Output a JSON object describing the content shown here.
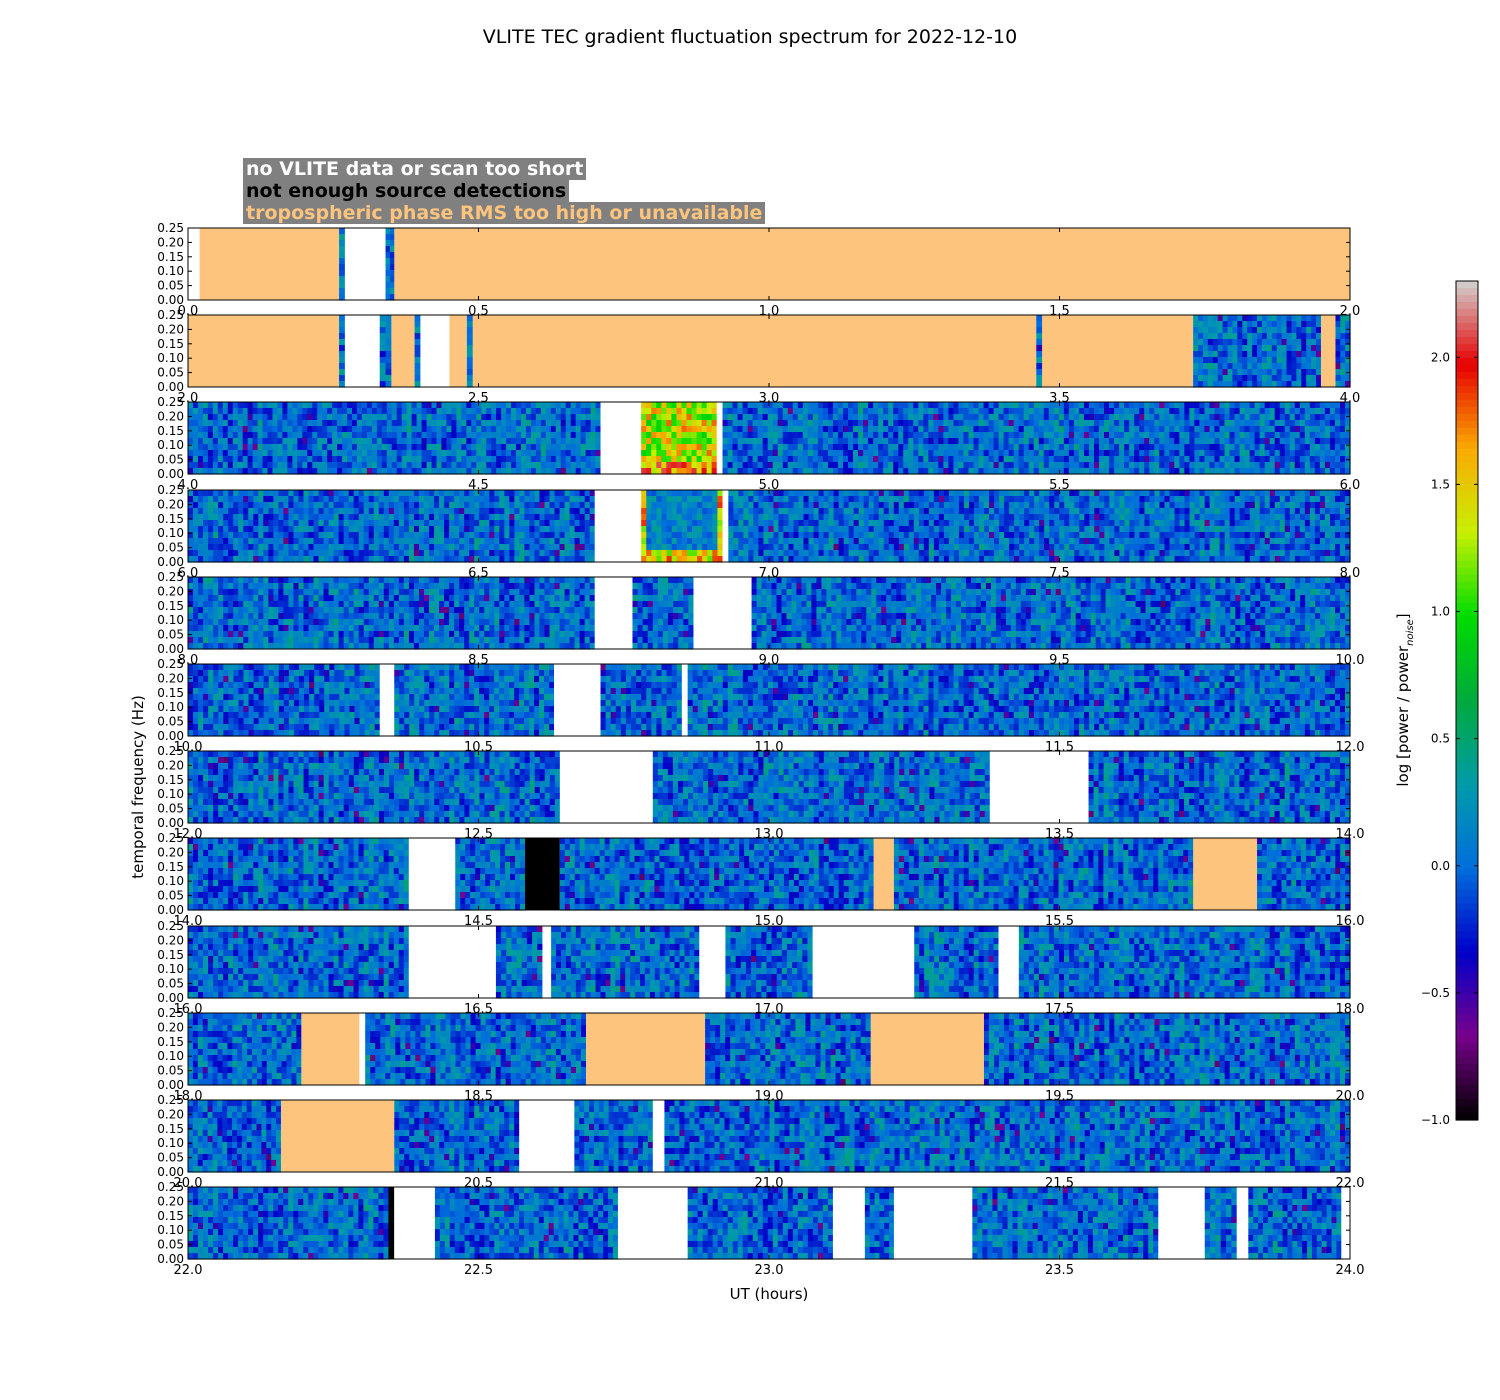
{
  "chart_data": {
    "type": "heatmap",
    "title": "VLITE TEC gradient fluctuation spectrum for 2022-12-10",
    "xlabel": "UT (hours)",
    "ylabel": "temporal frequency (Hz)",
    "ylim": [
      0,
      0.25
    ],
    "yticks": [
      "0.00",
      "0.05",
      "0.10",
      "0.15",
      "0.20",
      "0.25"
    ],
    "colorbar": {
      "label": "log [power / power",
      "label_sub": "noise",
      "label_end": "]",
      "range": [
        -1.0,
        2.3
      ],
      "ticks": [
        "−1.0",
        "−0.5",
        "0.0",
        "0.5",
        "1.0",
        "1.5",
        "2.0"
      ],
      "tick_values": [
        -1.0,
        -0.5,
        0.0,
        0.5,
        1.0,
        1.5,
        2.0
      ],
      "colormap": "spectral (black-purple-blue-cyan-green-yellow-orange-red-white)"
    },
    "legend": [
      {
        "text": "no VLITE data or scan too short",
        "color": "#ffffff"
      },
      {
        "text": "not enough source detections",
        "color": "#000000"
      },
      {
        "text": "tropospheric phase RMS too high or unavailable",
        "color": "#fdc47e"
      }
    ],
    "panels": [
      {
        "xlim": [
          0,
          2
        ],
        "xticks": [
          "0.0",
          "0.5",
          "1.0",
          "1.5",
          "2.0"
        ],
        "segments": [
          [
            "white",
            0.0,
            0.02
          ],
          [
            "tropo",
            0.02,
            0.26
          ],
          [
            "data",
            0.26,
            0.27
          ],
          [
            "white",
            0.27,
            0.34
          ],
          [
            "data",
            0.34,
            0.355
          ],
          [
            "tropo",
            0.355,
            2.0
          ]
        ]
      },
      {
        "xlim": [
          2,
          4
        ],
        "xticks": [
          "2.0",
          "2.5",
          "3.0",
          "3.5",
          "4.0"
        ],
        "segments": [
          [
            "tropo",
            2.0,
            2.26
          ],
          [
            "data",
            2.26,
            2.27
          ],
          [
            "white",
            2.27,
            2.33
          ],
          [
            "data",
            2.33,
            2.35
          ],
          [
            "tropo",
            2.35,
            2.39
          ],
          [
            "data",
            2.39,
            2.4
          ],
          [
            "white",
            2.4,
            2.45
          ],
          [
            "tropo",
            2.45,
            2.48
          ],
          [
            "data",
            2.48,
            2.49
          ],
          [
            "tropo",
            2.49,
            3.46
          ],
          [
            "data",
            3.46,
            3.47
          ],
          [
            "tropo",
            3.47,
            3.73
          ],
          [
            "data",
            3.73,
            3.95
          ],
          [
            "tropo",
            3.95,
            3.975
          ],
          [
            "data",
            3.975,
            4.0
          ]
        ]
      },
      {
        "xlim": [
          4,
          6
        ],
        "xticks": [
          "4.0",
          "4.5",
          "5.0",
          "5.5",
          "6.0"
        ],
        "segments": [
          [
            "data",
            4.0,
            4.71
          ],
          [
            "white",
            4.71,
            4.78
          ],
          [
            "hot",
            4.78,
            4.91
          ],
          [
            "white",
            4.91,
            4.92
          ],
          [
            "data",
            4.92,
            6.0
          ]
        ]
      },
      {
        "xlim": [
          6,
          8
        ],
        "xticks": [
          "6.0",
          "6.5",
          "7.0",
          "7.5",
          "8.0"
        ],
        "segments": [
          [
            "data",
            6.0,
            6.7
          ],
          [
            "white",
            6.7,
            6.78
          ],
          [
            "hot2",
            6.78,
            6.92
          ],
          [
            "white",
            6.92,
            6.93
          ],
          [
            "data",
            6.93,
            8.0
          ]
        ]
      },
      {
        "xlim": [
          8,
          10
        ],
        "xticks": [
          "8.0",
          "8.5",
          "9.0",
          "9.5",
          "10.0"
        ],
        "segments": [
          [
            "data",
            8.0,
            8.7
          ],
          [
            "white",
            8.7,
            8.765
          ],
          [
            "data",
            8.765,
            8.87
          ],
          [
            "white",
            8.87,
            8.97
          ],
          [
            "data",
            8.97,
            10.0
          ]
        ]
      },
      {
        "xlim": [
          10,
          12
        ],
        "xticks": [
          "10.0",
          "10.5",
          "11.0",
          "11.5",
          "12.0"
        ],
        "segments": [
          [
            "data",
            10.0,
            10.33
          ],
          [
            "white",
            10.33,
            10.355
          ],
          [
            "data",
            10.355,
            10.63
          ],
          [
            "white",
            10.63,
            10.71
          ],
          [
            "data",
            10.71,
            10.85
          ],
          [
            "white",
            10.85,
            10.86
          ],
          [
            "data",
            10.86,
            12.0
          ]
        ]
      },
      {
        "xlim": [
          12,
          14
        ],
        "xticks": [
          "12.0",
          "12.5",
          "13.0",
          "13.5",
          "14.0"
        ],
        "segments": [
          [
            "data",
            12.0,
            12.64
          ],
          [
            "white",
            12.64,
            12.8
          ],
          [
            "data",
            12.8,
            13.38
          ],
          [
            "white",
            13.38,
            13.55
          ],
          [
            "data",
            13.55,
            14.0
          ]
        ]
      },
      {
        "xlim": [
          14,
          16
        ],
        "xticks": [
          "14.0",
          "14.5",
          "15.0",
          "15.5",
          "16.0"
        ],
        "segments": [
          [
            "data",
            14.0,
            14.38
          ],
          [
            "white",
            14.38,
            14.46
          ],
          [
            "data",
            14.46,
            14.58
          ],
          [
            "black",
            14.58,
            14.64
          ],
          [
            "data",
            14.64,
            15.18
          ],
          [
            "tropo",
            15.18,
            15.215
          ],
          [
            "data",
            15.215,
            15.73
          ],
          [
            "tropo",
            15.73,
            15.84
          ],
          [
            "data",
            15.84,
            16.0
          ]
        ]
      },
      {
        "xlim": [
          16,
          18
        ],
        "xticks": [
          "16.0",
          "16.5",
          "17.0",
          "17.5",
          "18.0"
        ],
        "segments": [
          [
            "data",
            16.0,
            16.38
          ],
          [
            "white",
            16.38,
            16.53
          ],
          [
            "data",
            16.53,
            16.61
          ],
          [
            "white",
            16.61,
            16.625
          ],
          [
            "data",
            16.625,
            16.88
          ],
          [
            "white",
            16.88,
            16.925
          ],
          [
            "data",
            16.925,
            17.075
          ],
          [
            "white",
            17.075,
            17.25
          ],
          [
            "data",
            17.25,
            17.395
          ],
          [
            "white",
            17.395,
            17.43
          ],
          [
            "data",
            17.43,
            18.0
          ]
        ]
      },
      {
        "xlim": [
          18,
          20
        ],
        "xticks": [
          "18.0",
          "18.5",
          "19.0",
          "19.5",
          "20.0"
        ],
        "segments": [
          [
            "data",
            18.0,
            18.195
          ],
          [
            "tropo",
            18.195,
            18.295
          ],
          [
            "white",
            18.295,
            18.305
          ],
          [
            "data",
            18.305,
            18.685
          ],
          [
            "tropo",
            18.685,
            18.89
          ],
          [
            "data",
            18.89,
            19.175
          ],
          [
            "tropo",
            19.175,
            19.37
          ],
          [
            "data",
            19.37,
            20.0
          ]
        ]
      },
      {
        "xlim": [
          20,
          22
        ],
        "xticks": [
          "20.0",
          "20.5",
          "21.0",
          "21.5",
          "22.0"
        ],
        "segments": [
          [
            "data",
            20.0,
            20.16
          ],
          [
            "tropo",
            20.16,
            20.355
          ],
          [
            "data",
            20.355,
            20.57
          ],
          [
            "white",
            20.57,
            20.665
          ],
          [
            "data",
            20.665,
            20.8
          ],
          [
            "white",
            20.8,
            20.82
          ],
          [
            "data",
            20.82,
            22.0
          ]
        ]
      },
      {
        "xlim": [
          22,
          24
        ],
        "xticks": [
          "22.0",
          "22.5",
          "23.0",
          "23.5",
          "24.0"
        ],
        "segments": [
          [
            "data",
            22.0,
            22.345
          ],
          [
            "black",
            22.345,
            22.355
          ],
          [
            "white",
            22.355,
            22.425
          ],
          [
            "data",
            22.425,
            22.74
          ],
          [
            "white",
            22.74,
            22.86
          ],
          [
            "data",
            22.86,
            23.11
          ],
          [
            "white",
            23.11,
            23.165
          ],
          [
            "data",
            23.165,
            23.215
          ],
          [
            "white",
            23.215,
            23.35
          ],
          [
            "data",
            23.35,
            23.67
          ],
          [
            "white",
            23.67,
            23.75
          ],
          [
            "data",
            23.75,
            23.805
          ],
          [
            "white",
            23.805,
            23.825
          ],
          [
            "data",
            23.825,
            23.985
          ],
          [
            "white",
            23.985,
            24.0
          ]
        ]
      }
    ]
  }
}
